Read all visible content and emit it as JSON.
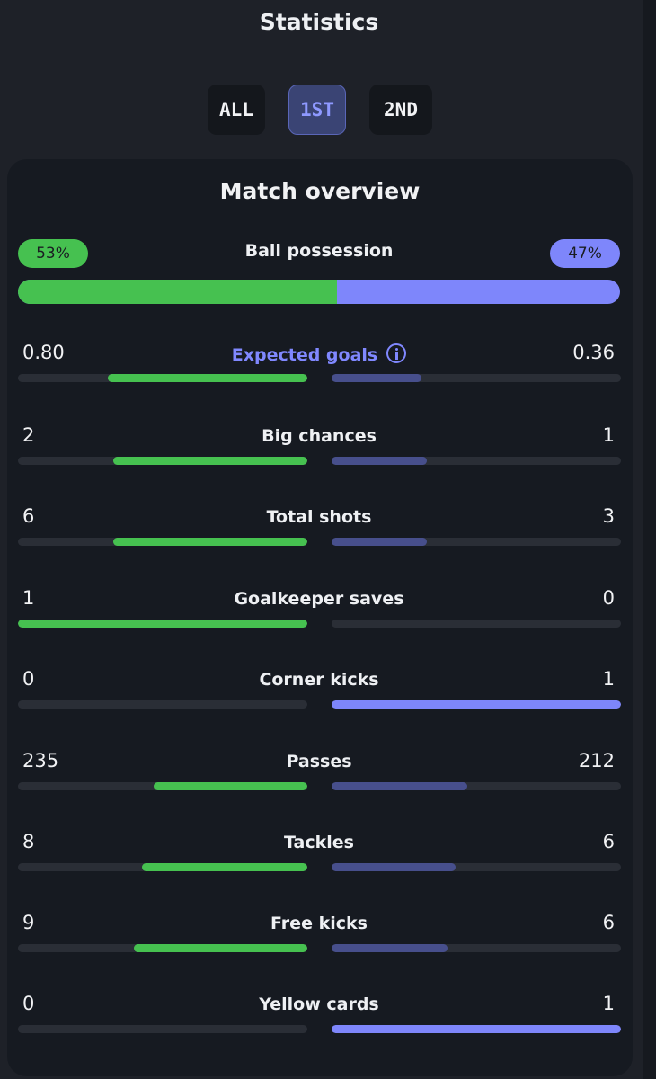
{
  "panel": {
    "title": "Statistics"
  },
  "tabs": [
    {
      "label": "ALL",
      "active": false
    },
    {
      "label": "1ST",
      "active": true
    },
    {
      "label": "2ND",
      "active": false
    }
  ],
  "overview": {
    "title": "Match overview",
    "possession": {
      "label": "Ball possession",
      "home": "53%",
      "away": "47%",
      "home_fraction": 0.53
    },
    "stats": [
      {
        "label": "Expected goals",
        "home": "0.80",
        "away": "0.36",
        "home_fraction": 0.69,
        "away_fraction": 0.31,
        "link": true
      },
      {
        "label": "Big chances",
        "home": "2",
        "away": "1",
        "home_fraction": 0.67,
        "away_fraction": 0.33
      },
      {
        "label": "Total shots",
        "home": "6",
        "away": "3",
        "home_fraction": 0.67,
        "away_fraction": 0.33
      },
      {
        "label": "Goalkeeper saves",
        "home": "1",
        "away": "0",
        "home_fraction": 1.0,
        "away_fraction": 0.0
      },
      {
        "label": "Corner kicks",
        "home": "0",
        "away": "1",
        "home_fraction": 0.0,
        "away_fraction": 1.0
      },
      {
        "label": "Passes",
        "home": "235",
        "away": "212",
        "home_fraction": 0.53,
        "away_fraction": 0.47
      },
      {
        "label": "Tackles",
        "home": "8",
        "away": "6",
        "home_fraction": 0.57,
        "away_fraction": 0.43
      },
      {
        "label": "Free kicks",
        "home": "9",
        "away": "6",
        "home_fraction": 0.6,
        "away_fraction": 0.4
      },
      {
        "label": "Yellow cards",
        "home": "0",
        "away": "1",
        "home_fraction": 0.0,
        "away_fraction": 1.0
      }
    ]
  },
  "colors": {
    "home": "#46c150",
    "away": "#7e86fb",
    "away_dim": "#474f8c"
  },
  "icons": {
    "info": "info-icon"
  }
}
